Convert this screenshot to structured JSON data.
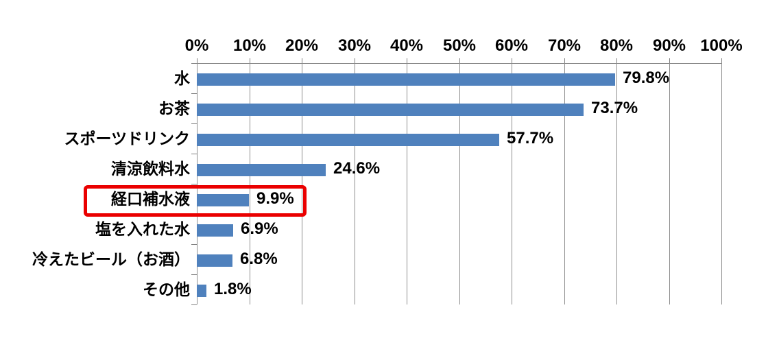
{
  "chart_data": {
    "type": "bar",
    "orientation": "horizontal",
    "title": "",
    "categories": [
      "水",
      "お茶",
      "スポーツドリンク",
      "清涼飲料水",
      "経口補水液",
      "塩を入れた水",
      "冷えたビール（お酒）",
      "その他"
    ],
    "values": [
      79.8,
      73.7,
      57.7,
      24.6,
      9.9,
      6.9,
      6.8,
      1.8
    ],
    "value_labels": [
      "79.8%",
      "73.7%",
      "57.7%",
      "24.6%",
      "9.9%",
      "6.9%",
      "6.8%",
      "1.8%"
    ],
    "x_ticks": [
      "0%",
      "10%",
      "20%",
      "30%",
      "40%",
      "50%",
      "60%",
      "70%",
      "80%",
      "90%",
      "100%"
    ],
    "xlim": [
      0,
      100
    ],
    "axis_position": "top",
    "grid": true,
    "legend": "none",
    "bar_color": "#4f81bd",
    "gridline_color": "#8c8c8c",
    "axis_color": "#7f7f7f",
    "text_color": "#000000",
    "highlight": {
      "category": "経口補水液",
      "index": 4,
      "box_color": "#ea0000"
    }
  }
}
